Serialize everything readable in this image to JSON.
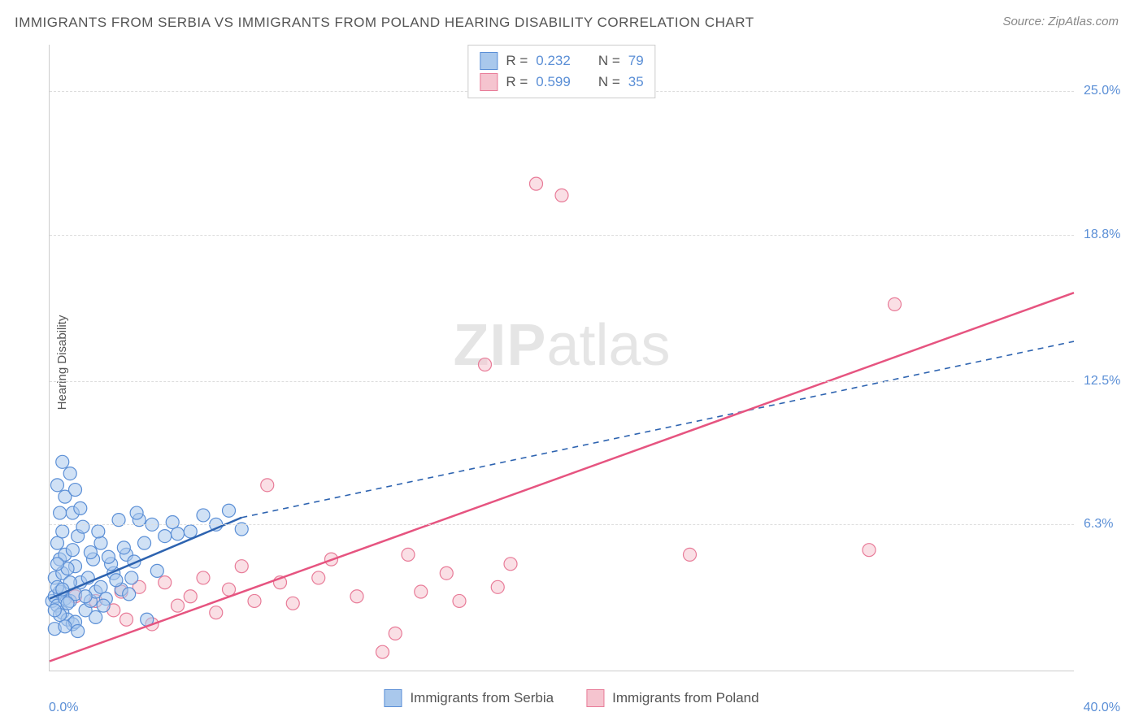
{
  "title": "IMMIGRANTS FROM SERBIA VS IMMIGRANTS FROM POLAND HEARING DISABILITY CORRELATION CHART",
  "source": "Source: ZipAtlas.com",
  "y_axis_label": "Hearing Disability",
  "watermark": {
    "zip": "ZIP",
    "atlas": "atlas"
  },
  "chart": {
    "type": "scatter",
    "background_color": "#ffffff",
    "grid_color": "#dddddd",
    "axis_color": "#cccccc",
    "tick_label_color": "#5b8fd6",
    "label_font_size": 15,
    "tick_font_size": 16,
    "title_font_size": 17,
    "xlim": [
      0,
      40
    ],
    "ylim": [
      0,
      27
    ],
    "x_min_label": "0.0%",
    "x_max_label": "40.0%",
    "y_ticks": [
      {
        "value": 6.3,
        "label": "6.3%"
      },
      {
        "value": 12.5,
        "label": "12.5%"
      },
      {
        "value": 18.8,
        "label": "18.8%"
      },
      {
        "value": 25.0,
        "label": "25.0%"
      }
    ],
    "marker_radius": 8,
    "marker_opacity": 0.55,
    "line_width_solid": 2.5,
    "line_width_dash": 1.6,
    "dash_pattern": "7,6"
  },
  "series": {
    "serbia": {
      "label": "Immigrants from Serbia",
      "R": "0.232",
      "N": "79",
      "fill_color": "#a9c8ec",
      "stroke_color": "#5b8fd6",
      "line_color": "#2d63b0",
      "trend_solid": {
        "x1": 0,
        "y1": 3.1,
        "x2": 7.5,
        "y2": 6.6
      },
      "trend_dash": {
        "x1": 7.5,
        "y1": 6.6,
        "x2": 40,
        "y2": 14.2
      },
      "points": [
        [
          0.1,
          3.0
        ],
        [
          0.2,
          3.2
        ],
        [
          0.3,
          2.8
        ],
        [
          0.4,
          3.4
        ],
        [
          0.5,
          2.5
        ],
        [
          0.2,
          4.0
        ],
        [
          0.6,
          3.1
        ],
        [
          0.3,
          3.6
        ],
        [
          0.7,
          2.2
        ],
        [
          0.5,
          4.2
        ],
        [
          0.8,
          3.0
        ],
        [
          0.4,
          4.8
        ],
        [
          0.9,
          2.0
        ],
        [
          0.6,
          5.0
        ],
        [
          1.0,
          3.3
        ],
        [
          0.2,
          1.8
        ],
        [
          1.2,
          3.8
        ],
        [
          0.3,
          5.5
        ],
        [
          1.4,
          2.6
        ],
        [
          0.5,
          6.0
        ],
        [
          1.6,
          3.0
        ],
        [
          0.7,
          2.9
        ],
        [
          1.0,
          4.5
        ],
        [
          1.8,
          3.4
        ],
        [
          0.4,
          6.8
        ],
        [
          0.9,
          5.2
        ],
        [
          2.0,
          3.6
        ],
        [
          0.6,
          7.5
        ],
        [
          1.5,
          4.0
        ],
        [
          2.2,
          3.1
        ],
        [
          0.3,
          8.0
        ],
        [
          1.1,
          5.8
        ],
        [
          2.5,
          4.2
        ],
        [
          0.8,
          8.5
        ],
        [
          1.3,
          6.2
        ],
        [
          2.8,
          3.5
        ],
        [
          0.5,
          9.0
        ],
        [
          1.7,
          4.8
        ],
        [
          3.0,
          5.0
        ],
        [
          1.0,
          2.1
        ],
        [
          2.0,
          5.5
        ],
        [
          3.2,
          4.0
        ],
        [
          0.4,
          2.4
        ],
        [
          1.9,
          6.0
        ],
        [
          3.5,
          6.5
        ],
        [
          0.6,
          1.9
        ],
        [
          2.4,
          4.6
        ],
        [
          4.0,
          6.3
        ],
        [
          0.9,
          6.8
        ],
        [
          2.6,
          3.9
        ],
        [
          4.5,
          5.8
        ],
        [
          1.2,
          7.0
        ],
        [
          2.9,
          5.3
        ],
        [
          4.8,
          6.4
        ],
        [
          0.7,
          4.4
        ],
        [
          3.3,
          4.7
        ],
        [
          5.0,
          5.9
        ],
        [
          1.4,
          3.2
        ],
        [
          3.7,
          5.5
        ],
        [
          5.5,
          6.0
        ],
        [
          0.2,
          2.6
        ],
        [
          2.1,
          2.8
        ],
        [
          6.0,
          6.7
        ],
        [
          1.6,
          5.1
        ],
        [
          4.2,
          4.3
        ],
        [
          6.5,
          6.3
        ],
        [
          0.8,
          3.8
        ],
        [
          2.7,
          6.5
        ],
        [
          7.0,
          6.9
        ],
        [
          1.1,
          1.7
        ],
        [
          3.1,
          3.3
        ],
        [
          7.5,
          6.1
        ],
        [
          0.5,
          3.5
        ],
        [
          2.3,
          4.9
        ],
        [
          1.8,
          2.3
        ],
        [
          0.3,
          4.6
        ],
        [
          3.4,
          6.8
        ],
        [
          1.0,
          7.8
        ],
        [
          3.8,
          2.2
        ]
      ]
    },
    "poland": {
      "label": "Immigrants from Poland",
      "R": "0.599",
      "N": "35",
      "fill_color": "#f5c4cf",
      "stroke_color": "#e87b98",
      "line_color": "#e65480",
      "trend_solid": {
        "x1": 0,
        "y1": 0.4,
        "x2": 40,
        "y2": 16.3
      },
      "points": [
        [
          1.0,
          3.2
        ],
        [
          1.8,
          3.0
        ],
        [
          2.5,
          2.6
        ],
        [
          2.8,
          3.4
        ],
        [
          3.0,
          2.2
        ],
        [
          3.5,
          3.6
        ],
        [
          4.0,
          2.0
        ],
        [
          4.5,
          3.8
        ],
        [
          5.0,
          2.8
        ],
        [
          5.5,
          3.2
        ],
        [
          6.0,
          4.0
        ],
        [
          6.5,
          2.5
        ],
        [
          7.0,
          3.5
        ],
        [
          7.5,
          4.5
        ],
        [
          8.0,
          3.0
        ],
        [
          8.5,
          8.0
        ],
        [
          9.0,
          3.8
        ],
        [
          9.5,
          2.9
        ],
        [
          10.5,
          4.0
        ],
        [
          11.0,
          4.8
        ],
        [
          12.0,
          3.2
        ],
        [
          13.0,
          0.8
        ],
        [
          13.5,
          1.6
        ],
        [
          14.0,
          5.0
        ],
        [
          14.5,
          3.4
        ],
        [
          15.5,
          4.2
        ],
        [
          16.0,
          3.0
        ],
        [
          17.0,
          13.2
        ],
        [
          17.5,
          3.6
        ],
        [
          18.0,
          4.6
        ],
        [
          19.0,
          21.0
        ],
        [
          20.0,
          20.5
        ],
        [
          25.0,
          5.0
        ],
        [
          33.0,
          15.8
        ],
        [
          32.0,
          5.2
        ]
      ]
    }
  },
  "stats_legend": {
    "R_prefix": "R =",
    "N_prefix": "N ="
  }
}
